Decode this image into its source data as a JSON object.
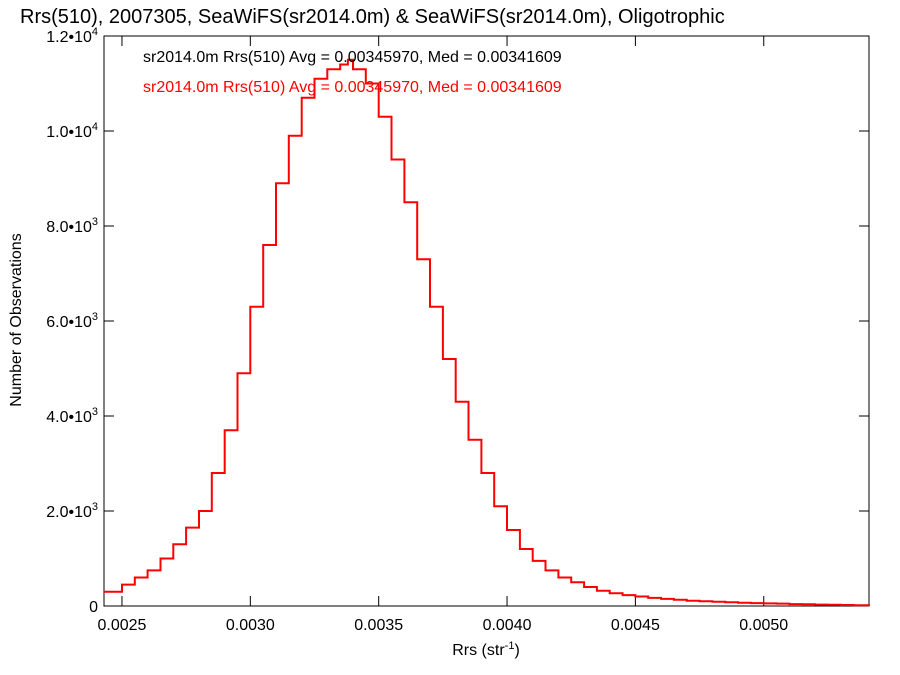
{
  "chart_data": {
    "type": "line",
    "title": "Rrs(510), 2007305, SeaWiFS(sr2014.0m) & SeaWiFS(sr2014.0m), Oligotrophic",
    "xlabel": "Rrs (str",
    "xlabel_sup": "-1",
    "xlabel_suffix": ")",
    "ylabel": "Number of Observations",
    "xlim": [
      0.00243,
      0.00541
    ],
    "ylim": [
      0,
      12000
    ],
    "x_ticks": [
      {
        "value": 0.0025,
        "label": "0.0025"
      },
      {
        "value": 0.003,
        "label": "0.0030"
      },
      {
        "value": 0.0035,
        "label": "0.0035"
      },
      {
        "value": 0.004,
        "label": "0.0040"
      },
      {
        "value": 0.0045,
        "label": "0.0045"
      },
      {
        "value": 0.005,
        "label": "0.0050"
      }
    ],
    "y_ticks": [
      {
        "value": 0,
        "label": "0",
        "sup": ""
      },
      {
        "value": 2000,
        "label": "2.0•10",
        "sup": "3"
      },
      {
        "value": 4000,
        "label": "4.0•10",
        "sup": "3"
      },
      {
        "value": 6000,
        "label": "6.0•10",
        "sup": "3"
      },
      {
        "value": 8000,
        "label": "8.0•10",
        "sup": "3"
      },
      {
        "value": 10000,
        "label": "1.0•10",
        "sup": "4"
      },
      {
        "value": 12000,
        "label": "1.2•10",
        "sup": "4"
      }
    ],
    "legend": [
      {
        "text": "sr2014.0m Rrs(510) Avg = 0.00345970, Med = 0.00341609",
        "color": "#000000"
      },
      {
        "text": "sr2014.0m Rrs(510) Avg = 0.00345970, Med = 0.00341609",
        "color": "#ff0000"
      }
    ],
    "series": [
      {
        "color": "#ff0000",
        "style": "step",
        "x": [
          0.00243,
          0.0025,
          0.00255,
          0.0026,
          0.00265,
          0.0027,
          0.00275,
          0.0028,
          0.00285,
          0.0029,
          0.00295,
          0.003,
          0.00305,
          0.0031,
          0.00315,
          0.0032,
          0.00325,
          0.0033,
          0.00335,
          0.00338,
          0.0034,
          0.00345,
          0.0035,
          0.00355,
          0.0036,
          0.00365,
          0.0037,
          0.00375,
          0.0038,
          0.00385,
          0.0039,
          0.00395,
          0.004,
          0.00405,
          0.0041,
          0.00415,
          0.0042,
          0.00425,
          0.0043,
          0.00435,
          0.0044,
          0.00445,
          0.0045,
          0.00455,
          0.0046,
          0.00465,
          0.0047,
          0.00475,
          0.0048,
          0.00485,
          0.0049,
          0.00495,
          0.005,
          0.00505,
          0.0051,
          0.00515,
          0.0052,
          0.00525,
          0.0053,
          0.00535,
          0.00541
        ],
        "y": [
          300,
          450,
          600,
          750,
          1000,
          1300,
          1650,
          2000,
          2800,
          3700,
          4900,
          6300,
          7600,
          8900,
          9900,
          10700,
          11100,
          11300,
          11400,
          11500,
          11300,
          11000,
          10300,
          9400,
          8500,
          7300,
          6300,
          5200,
          4300,
          3500,
          2800,
          2100,
          1600,
          1200,
          950,
          750,
          600,
          500,
          400,
          320,
          270,
          230,
          200,
          170,
          150,
          130,
          110,
          100,
          90,
          80,
          70,
          60,
          55,
          50,
          40,
          35,
          30,
          25,
          20,
          15,
          10
        ]
      }
    ]
  }
}
